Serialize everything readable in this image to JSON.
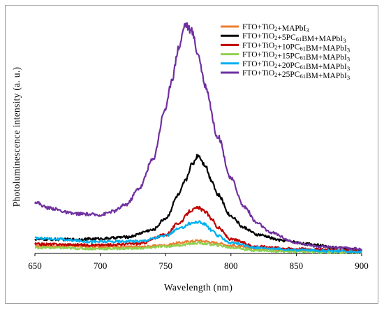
{
  "chart_data": {
    "type": "line",
    "title": "",
    "xlabel": "Wavelength (nm)",
    "ylabel": "Photoluminescence intensity (a. u.)",
    "xlim": [
      650,
      900
    ],
    "xticks": [
      "650",
      "700",
      "750",
      "800",
      "850",
      "900"
    ],
    "y_ticks_shown": false,
    "ylim": [
      0,
      100
    ],
    "grid": false,
    "legend_position": "top-right",
    "series": [
      {
        "name": "FTO+TiO2+MAPbI3",
        "name_parts": [
          [
            "FTO+TiO",
            ""
          ],
          [
            "2",
            "sub"
          ],
          [
            "+MAPbI",
            ""
          ],
          [
            "3",
            "sub"
          ]
        ],
        "color": "#ED7D31",
        "x": [
          650,
          700,
          730,
          750,
          760,
          770,
          775,
          780,
          790,
          800,
          820,
          850,
          880,
          900
        ],
        "y": [
          3.2,
          3.0,
          2.8,
          3.5,
          4.5,
          5.2,
          5.5,
          5.2,
          4.4,
          3.3,
          2.0,
          1.2,
          0.9,
          0.7
        ]
      },
      {
        "name": "FTO+TiO2+5PC61BM+MAPbI3",
        "name_parts": [
          [
            "FTO+TiO",
            ""
          ],
          [
            "2",
            "sub"
          ],
          [
            "+5PC",
            ""
          ],
          [
            "61",
            "sub"
          ],
          [
            "BM+MAPbI",
            ""
          ],
          [
            "3",
            "sub"
          ]
        ],
        "color": "#000000",
        "x": [
          650,
          680,
          700,
          720,
          740,
          750,
          760,
          765,
          770,
          775,
          780,
          785,
          790,
          800,
          810,
          820,
          840,
          860,
          880,
          900
        ],
        "y": [
          6.0,
          6.0,
          6.3,
          7.0,
          10.0,
          15.0,
          25.0,
          31.0,
          38.0,
          42.0,
          38.0,
          31.5,
          25.0,
          16.0,
          11.0,
          8.0,
          5.5,
          4.0,
          2.5,
          1.5
        ]
      },
      {
        "name": "FTO+TiO2+10PC61BM+MAPbI3",
        "name_parts": [
          [
            "FTO+TiO",
            ""
          ],
          [
            "2",
            "sub"
          ],
          [
            "+10PC",
            ""
          ],
          [
            "61",
            "sub"
          ],
          [
            "BM+MAPbI",
            ""
          ],
          [
            "3",
            "sub"
          ]
        ],
        "color": "#C00000",
        "x": [
          650,
          700,
          730,
          750,
          760,
          770,
          775,
          780,
          785,
          790,
          800,
          820,
          850,
          880,
          900
        ],
        "y": [
          4.0,
          3.6,
          4.2,
          8.0,
          13.0,
          18.5,
          19.5,
          18.0,
          15.0,
          11.0,
          6.0,
          3.0,
          2.0,
          1.5,
          1.0
        ]
      },
      {
        "name": "FTO+TiO2+15PC61BM+MAPbI3",
        "name_parts": [
          [
            "FTO+TiO",
            ""
          ],
          [
            "2",
            "sub"
          ],
          [
            "+15PC",
            ""
          ],
          [
            "61",
            "sub"
          ],
          [
            "BM+MAPbI",
            ""
          ],
          [
            "3",
            "sub"
          ]
        ],
        "color": "#92D050",
        "x": [
          650,
          700,
          730,
          750,
          760,
          770,
          775,
          780,
          790,
          800,
          820,
          850,
          880,
          900
        ],
        "y": [
          2.5,
          2.0,
          2.2,
          3.0,
          3.5,
          4.2,
          4.5,
          4.2,
          3.5,
          2.5,
          1.3,
          0.8,
          0.5,
          0.4
        ]
      },
      {
        "name": "FTO+TiO2+20PC61BM+MAPbI3",
        "name_parts": [
          [
            "FTO+TiO",
            ""
          ],
          [
            "2",
            "sub"
          ],
          [
            "+20PC",
            ""
          ],
          [
            "61",
            "sub"
          ],
          [
            "BM+MAPbI",
            ""
          ],
          [
            "3",
            "sub"
          ]
        ],
        "color": "#00B0F0",
        "x": [
          650,
          700,
          730,
          750,
          760,
          770,
          775,
          780,
          785,
          790,
          800,
          820,
          850,
          880,
          900
        ],
        "y": [
          6.5,
          5.0,
          5.3,
          7.5,
          10.5,
          13.0,
          13.5,
          12.5,
          10.0,
          7.5,
          4.5,
          2.5,
          1.5,
          1.0,
          0.8
        ]
      },
      {
        "name": "FTO+TiO2+25PC61BM+MAPbI3",
        "name_parts": [
          [
            "FTO+TiO",
            ""
          ],
          [
            "2",
            "sub"
          ],
          [
            "+25PC",
            ""
          ],
          [
            "61",
            "sub"
          ],
          [
            "BM+MAPbI",
            ""
          ],
          [
            "3",
            "sub"
          ]
        ],
        "color": "#7030A0",
        "x": [
          650,
          660,
          680,
          700,
          710,
          720,
          730,
          740,
          750,
          755,
          760,
          765,
          770,
          775,
          780,
          790,
          800,
          810,
          820,
          830,
          850,
          870,
          900
        ],
        "y": [
          22.0,
          19.5,
          17.0,
          16.5,
          18.0,
          21.0,
          28.0,
          40.0,
          62.0,
          75.0,
          88.0,
          98.0,
          95.0,
          85.0,
          72.0,
          50.0,
          32.0,
          20.0,
          13.0,
          9.0,
          4.5,
          2.8,
          2.0
        ]
      }
    ]
  }
}
